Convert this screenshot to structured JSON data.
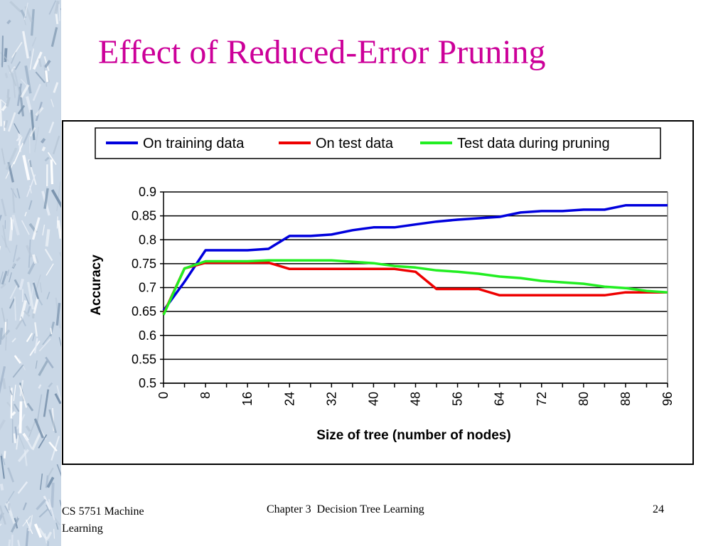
{
  "slide": {
    "title": "Effect of Reduced-Error Pruning",
    "title_color": "#cc0099",
    "footer_left": "CS 5751 Machine Learning",
    "footer_center": "Chapter 3  Decision Tree Learning",
    "footer_right": "24"
  },
  "chart_data": {
    "type": "line",
    "title": "",
    "xlabel": "Size of tree (number of nodes)",
    "ylabel": "Accuracy",
    "xlim": [
      0,
      96
    ],
    "ylim": [
      0.5,
      0.9
    ],
    "x_major_ticks": [
      0,
      8,
      16,
      24,
      32,
      40,
      48,
      56,
      64,
      72,
      80,
      88,
      96
    ],
    "y_ticks": [
      0.5,
      0.55,
      0.6,
      0.65,
      0.7,
      0.75,
      0.8,
      0.85,
      0.9
    ],
    "grid": "horizontal",
    "legend_position": "top",
    "series": [
      {
        "name": "On training data",
        "color": "#0000dd",
        "points": [
          [
            0,
            0.652
          ],
          [
            4,
            0.712
          ],
          [
            8,
            0.778
          ],
          [
            12,
            0.778
          ],
          [
            16,
            0.778
          ],
          [
            20,
            0.781
          ],
          [
            24,
            0.808
          ],
          [
            28,
            0.808
          ],
          [
            32,
            0.811
          ],
          [
            36,
            0.82
          ],
          [
            40,
            0.826
          ],
          [
            44,
            0.826
          ],
          [
            48,
            0.832
          ],
          [
            52,
            0.838
          ],
          [
            56,
            0.842
          ],
          [
            60,
            0.845
          ],
          [
            64,
            0.848
          ],
          [
            68,
            0.857
          ],
          [
            72,
            0.86
          ],
          [
            76,
            0.86
          ],
          [
            80,
            0.863
          ],
          [
            84,
            0.863
          ],
          [
            88,
            0.872
          ],
          [
            92,
            0.872
          ],
          [
            96,
            0.872
          ]
        ]
      },
      {
        "name": "On test data",
        "color": "#ee0000",
        "points": [
          [
            0,
            0.645
          ],
          [
            4,
            0.74
          ],
          [
            8,
            0.752
          ],
          [
            12,
            0.752
          ],
          [
            16,
            0.752
          ],
          [
            20,
            0.752
          ],
          [
            24,
            0.739
          ],
          [
            28,
            0.739
          ],
          [
            32,
            0.739
          ],
          [
            36,
            0.739
          ],
          [
            40,
            0.739
          ],
          [
            44,
            0.739
          ],
          [
            48,
            0.733
          ],
          [
            52,
            0.697
          ],
          [
            56,
            0.697
          ],
          [
            60,
            0.697
          ],
          [
            64,
            0.684
          ],
          [
            68,
            0.684
          ],
          [
            72,
            0.684
          ],
          [
            76,
            0.684
          ],
          [
            80,
            0.684
          ],
          [
            84,
            0.684
          ],
          [
            88,
            0.69
          ],
          [
            92,
            0.69
          ],
          [
            96,
            0.69
          ]
        ]
      },
      {
        "name": "Test data during pruning",
        "color": "#22ee22",
        "points": [
          [
            0,
            0.643
          ],
          [
            4,
            0.74
          ],
          [
            8,
            0.755
          ],
          [
            12,
            0.755
          ],
          [
            16,
            0.755
          ],
          [
            20,
            0.757
          ],
          [
            24,
            0.757
          ],
          [
            28,
            0.757
          ],
          [
            32,
            0.757
          ],
          [
            36,
            0.754
          ],
          [
            40,
            0.751
          ],
          [
            44,
            0.745
          ],
          [
            48,
            0.742
          ],
          [
            52,
            0.736
          ],
          [
            56,
            0.733
          ],
          [
            60,
            0.729
          ],
          [
            64,
            0.723
          ],
          [
            68,
            0.72
          ],
          [
            72,
            0.714
          ],
          [
            76,
            0.711
          ],
          [
            80,
            0.708
          ],
          [
            84,
            0.702
          ],
          [
            88,
            0.699
          ],
          [
            92,
            0.693
          ],
          [
            96,
            0.69
          ]
        ]
      }
    ]
  }
}
